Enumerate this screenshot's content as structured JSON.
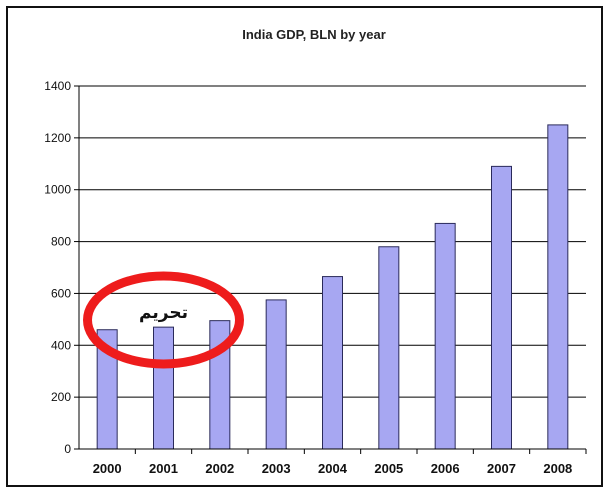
{
  "chart_data": {
    "type": "bar",
    "title": "India GDP, BLN  by year",
    "xlabel": "",
    "ylabel": "",
    "categories": [
      "2000",
      "2001",
      "2002",
      "2003",
      "2004",
      "2005",
      "2006",
      "2007",
      "2008"
    ],
    "values": [
      460,
      470,
      495,
      575,
      665,
      780,
      870,
      1090,
      1250
    ],
    "ylim": [
      0,
      1400
    ],
    "yticks": [
      "0",
      "200",
      "400",
      "600",
      "800",
      "1000",
      "1200",
      "1400"
    ],
    "grid": true,
    "legend": "none",
    "colors": {
      "bar_fill": "#a7a7f2",
      "bar_stroke": "#2a2a5a",
      "grid": "#000000",
      "annotation_ellipse": "#ee1c1c"
    },
    "annotations": [
      {
        "text": "تحریم",
        "category": "2001",
        "shape": "ellipse"
      }
    ]
  }
}
